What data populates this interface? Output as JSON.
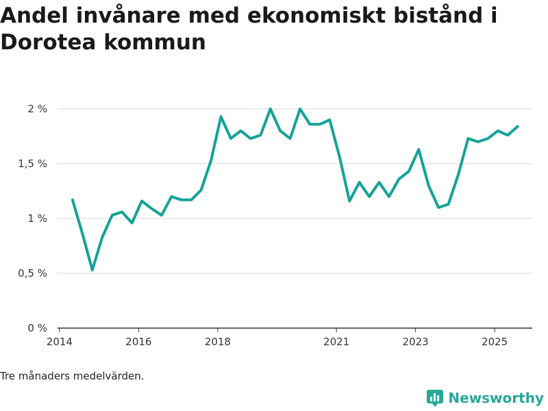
{
  "title": "Andel invånare med ekonomiskt bistånd i Dorotea kommun",
  "footnote": "Tre månaders medelvärden.",
  "brand": {
    "name": "Newsworthy",
    "icon": "bar-chart-logo-icon",
    "color": "#27a89a"
  },
  "chart_data": {
    "type": "line",
    "title": "Andel invånare med ekonomiskt bistånd i Dorotea kommun",
    "xlabel": "",
    "ylabel": "",
    "xlim": [
      2013.95,
      2025.95
    ],
    "ylim": [
      0,
      2
    ],
    "y_ticks": [
      0,
      0.5,
      1,
      1.5,
      2
    ],
    "y_tick_labels": [
      "0 %",
      "0,5 %",
      "1 %",
      "1,5 %",
      "2 %"
    ],
    "x_ticks": [
      2014,
      2016,
      2018,
      2021,
      2023,
      2025
    ],
    "x_tick_labels": [
      "2014",
      "2016",
      "2018",
      "2021",
      "2023",
      "2025"
    ],
    "grid": true,
    "color": "#13a396",
    "series": [
      {
        "name": "Andel",
        "x": [
          2014.33,
          2014.58,
          2014.83,
          2015.08,
          2015.33,
          2015.58,
          2015.83,
          2016.08,
          2016.33,
          2016.58,
          2016.83,
          2017.08,
          2017.33,
          2017.58,
          2017.83,
          2018.08,
          2018.33,
          2018.58,
          2018.83,
          2019.08,
          2019.33,
          2019.58,
          2019.83,
          2020.08,
          2020.33,
          2020.58,
          2020.83,
          2021.08,
          2021.33,
          2021.58,
          2021.83,
          2022.08,
          2022.33,
          2022.58,
          2022.83,
          2023.08,
          2023.33,
          2023.58,
          2023.83,
          2024.08,
          2024.33,
          2024.58,
          2024.83,
          2025.08,
          2025.33,
          2025.58
        ],
        "values": [
          1.17,
          0.86,
          0.53,
          0.83,
          1.03,
          1.06,
          0.96,
          1.16,
          1.09,
          1.03,
          1.2,
          1.17,
          1.17,
          1.26,
          1.53,
          1.93,
          1.73,
          1.8,
          1.73,
          1.76,
          2.0,
          1.8,
          1.73,
          2.0,
          1.86,
          1.86,
          1.9,
          1.56,
          1.16,
          1.33,
          1.2,
          1.33,
          1.2,
          1.36,
          1.43,
          1.63,
          1.3,
          1.1,
          1.13,
          1.4,
          1.73,
          1.7,
          1.73,
          1.8,
          1.76,
          1.84
        ]
      }
    ]
  }
}
